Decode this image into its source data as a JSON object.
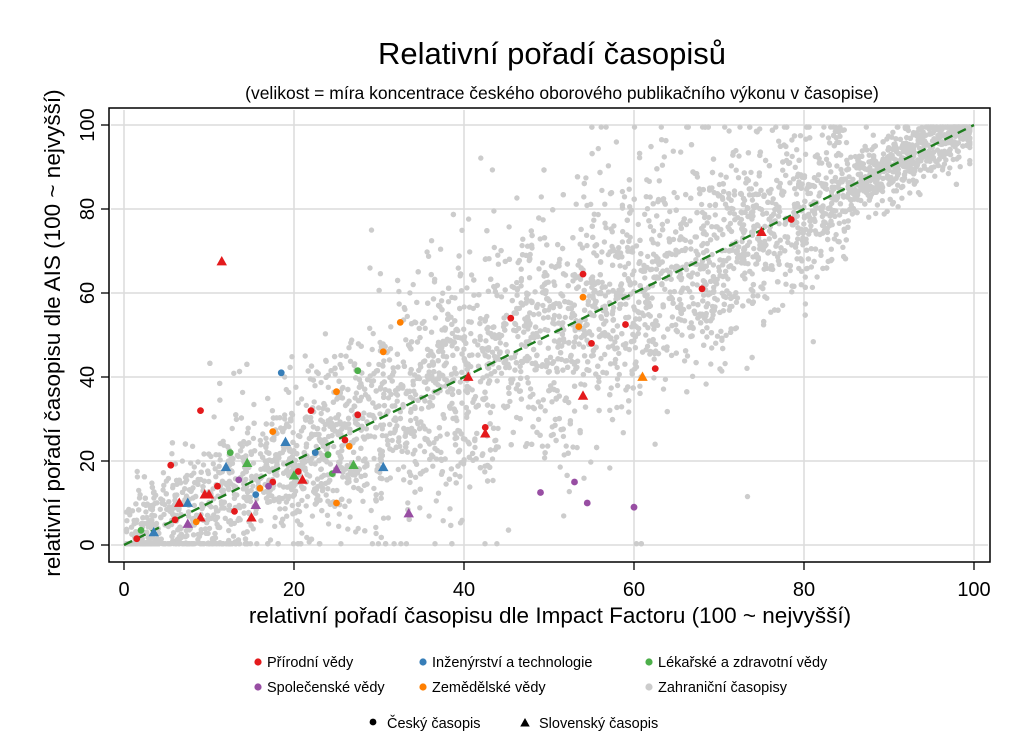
{
  "chart_data": {
    "type": "scatter",
    "title": "Relativní pořadí časopisů",
    "subtitle": "(velikost = míra koncentrace českého oborového publikačního výkonu v časopise)",
    "xlabel": "relativní pořadí časopisu dle Impact Factoru (100 ~ nejvyšší)",
    "ylabel": "relativní pořadí časopisu dle AIS (100 ~ nejvyšší)",
    "xlim": [
      0,
      100
    ],
    "ylim": [
      0,
      100
    ],
    "xticks": [
      "0",
      "20",
      "40",
      "60",
      "80",
      "100"
    ],
    "yticks": [
      "0",
      "20",
      "40",
      "60",
      "80",
      "100"
    ],
    "grid": true,
    "reference_line": {
      "from": [
        0,
        0
      ],
      "to": [
        100,
        100
      ],
      "style": "dashed",
      "color": "#1e7d1e"
    },
    "colors": {
      "prirodni": "#e41a1c",
      "inzenyrstvi": "#377eb8",
      "lekarske": "#4daf4a",
      "spolecenske": "#984ea3",
      "zemedelske": "#ff7f00",
      "zahranicni": "#cccccc"
    },
    "legend": {
      "placement": "bottom",
      "fields": [
        {
          "key": "prirodni",
          "label": "Přírodní vědy"
        },
        {
          "key": "inzenyrstvi",
          "label": "Inženýrství a technologie"
        },
        {
          "key": "lekarske",
          "label": "Lékařské a zdravotní vědy"
        },
        {
          "key": "spolecenske",
          "label": "Společenské vědy"
        },
        {
          "key": "zemedelske",
          "label": "Zemědělské vědy"
        },
        {
          "key": "zahranicni",
          "label": "Zahraniční časopisy"
        }
      ],
      "markers": [
        {
          "shape": "circle",
          "label": "Český časopis"
        },
        {
          "shape": "triangle",
          "label": "Slovenský časopis"
        }
      ]
    },
    "background_series": {
      "name": "Zahraniční časopisy",
      "approx_count": 9000,
      "trend": "along diagonal y = x, spread widest in mid range"
    },
    "series": [
      {
        "name": "Přírodní vědy",
        "key": "prirodni",
        "points": [
          {
            "x": 1.5,
            "y": 1.5,
            "m": "c"
          },
          {
            "x": 5.5,
            "y": 19,
            "m": "c"
          },
          {
            "x": 6,
            "y": 6,
            "m": "c"
          },
          {
            "x": 6.5,
            "y": 10,
            "m": "t"
          },
          {
            "x": 9,
            "y": 32,
            "m": "c"
          },
          {
            "x": 9,
            "y": 6.5,
            "m": "t"
          },
          {
            "x": 9.5,
            "y": 12,
            "m": "t"
          },
          {
            "x": 10,
            "y": 12,
            "m": "t"
          },
          {
            "x": 11,
            "y": 14,
            "m": "c"
          },
          {
            "x": 11.5,
            "y": 67.5,
            "m": "t"
          },
          {
            "x": 13,
            "y": 8,
            "m": "c"
          },
          {
            "x": 15,
            "y": 6.5,
            "m": "t"
          },
          {
            "x": 17.5,
            "y": 15,
            "m": "c"
          },
          {
            "x": 20.5,
            "y": 17.5,
            "m": "c"
          },
          {
            "x": 21,
            "y": 15.5,
            "m": "t"
          },
          {
            "x": 22,
            "y": 32,
            "m": "c"
          },
          {
            "x": 26,
            "y": 25,
            "m": "c"
          },
          {
            "x": 27.5,
            "y": 31,
            "m": "c"
          },
          {
            "x": 40.5,
            "y": 40,
            "m": "t"
          },
          {
            "x": 42.5,
            "y": 28,
            "m": "c"
          },
          {
            "x": 42.5,
            "y": 26.5,
            "m": "t"
          },
          {
            "x": 45.5,
            "y": 54,
            "m": "c"
          },
          {
            "x": 54,
            "y": 64.5,
            "m": "c"
          },
          {
            "x": 54,
            "y": 35.5,
            "m": "t"
          },
          {
            "x": 55,
            "y": 48,
            "m": "c"
          },
          {
            "x": 59,
            "y": 52.5,
            "m": "c"
          },
          {
            "x": 62.5,
            "y": 42,
            "m": "c"
          },
          {
            "x": 68,
            "y": 61,
            "m": "c"
          },
          {
            "x": 75,
            "y": 74.5,
            "m": "t"
          },
          {
            "x": 78.5,
            "y": 77.5,
            "m": "c"
          }
        ]
      },
      {
        "name": "Inženýrství a technologie",
        "key": "inzenyrstvi",
        "points": [
          {
            "x": 3.5,
            "y": 3,
            "m": "t"
          },
          {
            "x": 7.5,
            "y": 10,
            "m": "t"
          },
          {
            "x": 12,
            "y": 18.5,
            "m": "t"
          },
          {
            "x": 15.5,
            "y": 12,
            "m": "c"
          },
          {
            "x": 18.5,
            "y": 41,
            "m": "c"
          },
          {
            "x": 19,
            "y": 24.5,
            "m": "t"
          },
          {
            "x": 22.5,
            "y": 22,
            "m": "c"
          },
          {
            "x": 30.5,
            "y": 18.5,
            "m": "t"
          }
        ]
      },
      {
        "name": "Lékařské a zdravotní vědy",
        "key": "lekarske",
        "points": [
          {
            "x": 2,
            "y": 3.5,
            "m": "c"
          },
          {
            "x": 12.5,
            "y": 22,
            "m": "c"
          },
          {
            "x": 14.5,
            "y": 19.5,
            "m": "t"
          },
          {
            "x": 20,
            "y": 16.5,
            "m": "t"
          },
          {
            "x": 24,
            "y": 21.5,
            "m": "c"
          },
          {
            "x": 24.5,
            "y": 17,
            "m": "c"
          },
          {
            "x": 27.5,
            "y": 41.5,
            "m": "c"
          },
          {
            "x": 27,
            "y": 19,
            "m": "t"
          }
        ]
      },
      {
        "name": "Společenské vědy",
        "key": "spolecenske",
        "points": [
          {
            "x": 7.5,
            "y": 5,
            "m": "t"
          },
          {
            "x": 13.5,
            "y": 15.5,
            "m": "c"
          },
          {
            "x": 15.5,
            "y": 9.5,
            "m": "t"
          },
          {
            "x": 17,
            "y": 14,
            "m": "c"
          },
          {
            "x": 25,
            "y": 18,
            "m": "t"
          },
          {
            "x": 33.5,
            "y": 7.5,
            "m": "t"
          },
          {
            "x": 49,
            "y": 12.5,
            "m": "c"
          },
          {
            "x": 53,
            "y": 15,
            "m": "c"
          },
          {
            "x": 54.5,
            "y": 10,
            "m": "c"
          },
          {
            "x": 60,
            "y": 9,
            "m": "c"
          }
        ]
      },
      {
        "name": "Zemědělské vědy",
        "key": "zemedelske",
        "points": [
          {
            "x": 8.5,
            "y": 5.5,
            "m": "c"
          },
          {
            "x": 16,
            "y": 13.5,
            "m": "c"
          },
          {
            "x": 17.5,
            "y": 27,
            "m": "c"
          },
          {
            "x": 25,
            "y": 10,
            "m": "c"
          },
          {
            "x": 25,
            "y": 36.5,
            "m": "c"
          },
          {
            "x": 26.5,
            "y": 23.5,
            "m": "c"
          },
          {
            "x": 30.5,
            "y": 46,
            "m": "c"
          },
          {
            "x": 32.5,
            "y": 53,
            "m": "c"
          },
          {
            "x": 53.5,
            "y": 52,
            "m": "c"
          },
          {
            "x": 54,
            "y": 59,
            "m": "c"
          },
          {
            "x": 61,
            "y": 40,
            "m": "t"
          }
        ]
      }
    ]
  }
}
